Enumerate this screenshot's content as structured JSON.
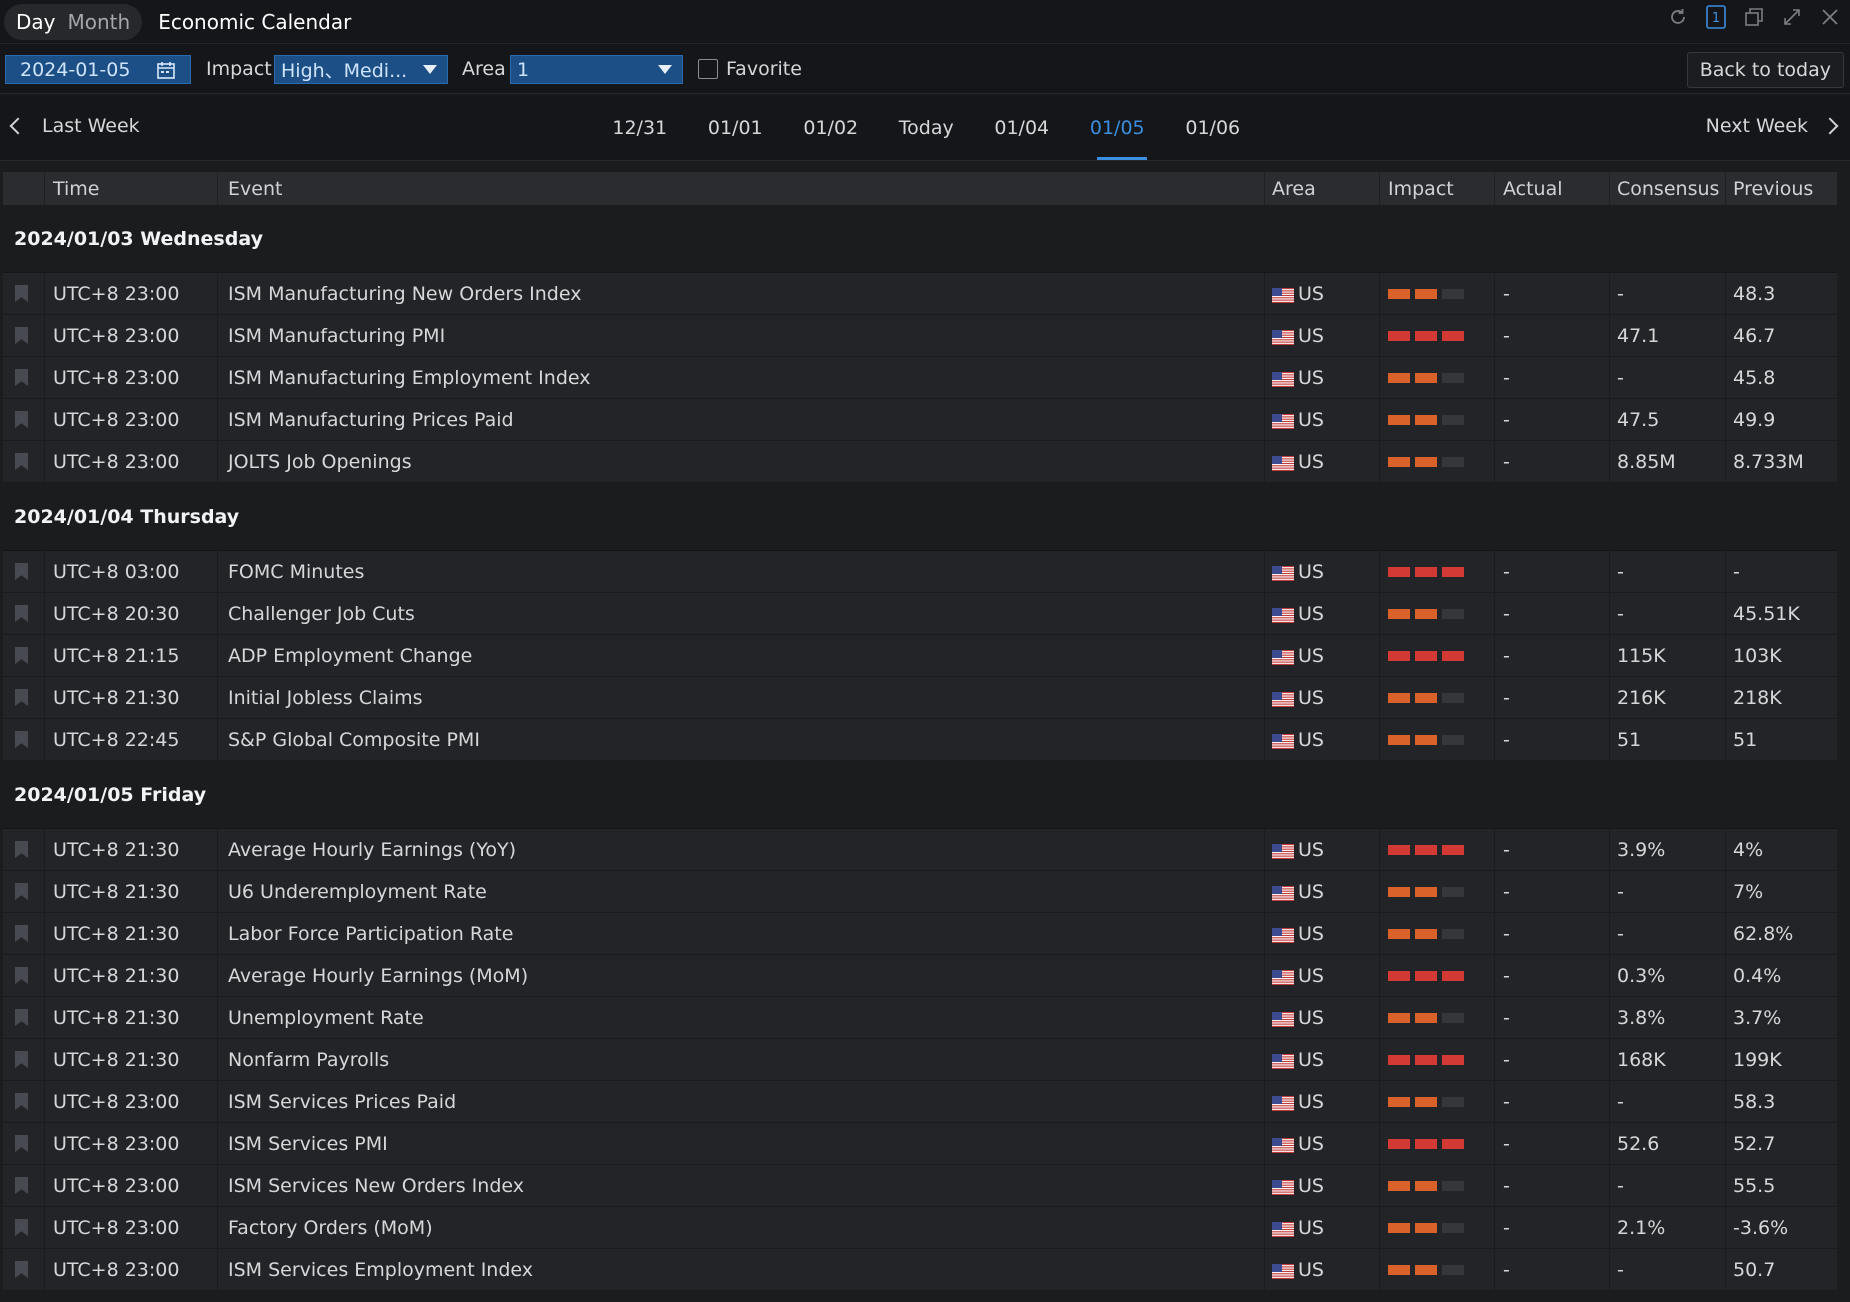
{
  "titlebar": {
    "tab_day": "Day",
    "tab_month": "Month",
    "app_title": "Economic Calendar",
    "window_controls": [
      "refresh-icon",
      "window-number-icon",
      "restore-icon",
      "maximize-icon",
      "close-icon"
    ],
    "window_number": "1"
  },
  "filters": {
    "date": "2024-01-05",
    "impact_label": "Impact",
    "impact_value": "High、Medi...",
    "area_label": "Area",
    "area_value": "1",
    "favorite_label": "Favorite",
    "back_to_today": "Back to today"
  },
  "weeknav": {
    "prev": "Last Week",
    "next": "Next Week",
    "days": [
      "12/31",
      "01/01",
      "01/02",
      "Today",
      "01/04",
      "01/05",
      "01/06"
    ],
    "active_day": "01/05"
  },
  "table": {
    "headers": {
      "time": "Time",
      "event": "Event",
      "area": "Area",
      "impact": "Impact",
      "actual": "Actual",
      "consensus": "Consensus",
      "previous": "Previous"
    },
    "groups": [
      {
        "date": "2024/01/03 Wednesday",
        "rows": [
          {
            "time": "UTC+8 23:00",
            "event": "ISM Manufacturing New Orders Index",
            "area": "US",
            "impact": 2,
            "actual": "-",
            "consensus": "-",
            "previous": "48.3"
          },
          {
            "time": "UTC+8 23:00",
            "event": "ISM Manufacturing PMI",
            "area": "US",
            "impact": 3,
            "actual": "-",
            "consensus": "47.1",
            "previous": "46.7"
          },
          {
            "time": "UTC+8 23:00",
            "event": "ISM Manufacturing Employment Index",
            "area": "US",
            "impact": 2,
            "actual": "-",
            "consensus": "-",
            "previous": "45.8"
          },
          {
            "time": "UTC+8 23:00",
            "event": "ISM Manufacturing Prices Paid",
            "area": "US",
            "impact": 2,
            "actual": "-",
            "consensus": "47.5",
            "previous": "49.9"
          },
          {
            "time": "UTC+8 23:00",
            "event": "JOLTS Job Openings",
            "area": "US",
            "impact": 2,
            "actual": "-",
            "consensus": "8.85M",
            "previous": "8.733M"
          }
        ]
      },
      {
        "date": "2024/01/04 Thursday",
        "rows": [
          {
            "time": "UTC+8 03:00",
            "event": "FOMC Minutes",
            "area": "US",
            "impact": 3,
            "actual": "-",
            "consensus": "-",
            "previous": "-"
          },
          {
            "time": "UTC+8 20:30",
            "event": "Challenger Job Cuts",
            "area": "US",
            "impact": 2,
            "actual": "-",
            "consensus": "-",
            "previous": "45.51K"
          },
          {
            "time": "UTC+8 21:15",
            "event": "ADP Employment Change",
            "area": "US",
            "impact": 3,
            "actual": "-",
            "consensus": "115K",
            "previous": "103K"
          },
          {
            "time": "UTC+8 21:30",
            "event": "Initial Jobless Claims",
            "area": "US",
            "impact": 2,
            "actual": "-",
            "consensus": "216K",
            "previous": "218K"
          },
          {
            "time": "UTC+8 22:45",
            "event": "S&P Global Composite PMI",
            "area": "US",
            "impact": 2,
            "actual": "-",
            "consensus": "51",
            "previous": "51"
          }
        ]
      },
      {
        "date": "2024/01/05 Friday",
        "rows": [
          {
            "time": "UTC+8 21:30",
            "event": "Average Hourly Earnings (YoY)",
            "area": "US",
            "impact": 3,
            "actual": "-",
            "consensus": "3.9%",
            "previous": "4%"
          },
          {
            "time": "UTC+8 21:30",
            "event": "U6 Underemployment Rate",
            "area": "US",
            "impact": 2,
            "actual": "-",
            "consensus": "-",
            "previous": "7%"
          },
          {
            "time": "UTC+8 21:30",
            "event": "Labor Force Participation Rate",
            "area": "US",
            "impact": 2,
            "actual": "-",
            "consensus": "-",
            "previous": "62.8%"
          },
          {
            "time": "UTC+8 21:30",
            "event": "Average Hourly Earnings (MoM)",
            "area": "US",
            "impact": 3,
            "actual": "-",
            "consensus": "0.3%",
            "previous": "0.4%"
          },
          {
            "time": "UTC+8 21:30",
            "event": "Unemployment Rate",
            "area": "US",
            "impact": 2,
            "actual": "-",
            "consensus": "3.8%",
            "previous": "3.7%"
          },
          {
            "time": "UTC+8 21:30",
            "event": "Nonfarm Payrolls",
            "area": "US",
            "impact": 3,
            "actual": "-",
            "consensus": "168K",
            "previous": "199K"
          },
          {
            "time": "UTC+8 23:00",
            "event": "ISM Services Prices Paid",
            "area": "US",
            "impact": 2,
            "actual": "-",
            "consensus": "-",
            "previous": "58.3"
          },
          {
            "time": "UTC+8 23:00",
            "event": "ISM Services PMI",
            "area": "US",
            "impact": 3,
            "actual": "-",
            "consensus": "52.6",
            "previous": "52.7"
          },
          {
            "time": "UTC+8 23:00",
            "event": "ISM Services New Orders Index",
            "area": "US",
            "impact": 2,
            "actual": "-",
            "consensus": "-",
            "previous": "55.5"
          },
          {
            "time": "UTC+8 23:00",
            "event": "Factory Orders (MoM)",
            "area": "US",
            "impact": 2,
            "actual": "-",
            "consensus": "2.1%",
            "previous": "-3.6%"
          },
          {
            "time": "UTC+8 23:00",
            "event": "ISM Services Employment Index",
            "area": "US",
            "impact": 2,
            "actual": "-",
            "consensus": "-",
            "previous": "50.7"
          }
        ]
      }
    ]
  },
  "colors": {
    "accent": "#3a8fe0",
    "impact_high": "#d33a35",
    "impact_medium": "#d9622b",
    "impact_off": "#35373b"
  }
}
